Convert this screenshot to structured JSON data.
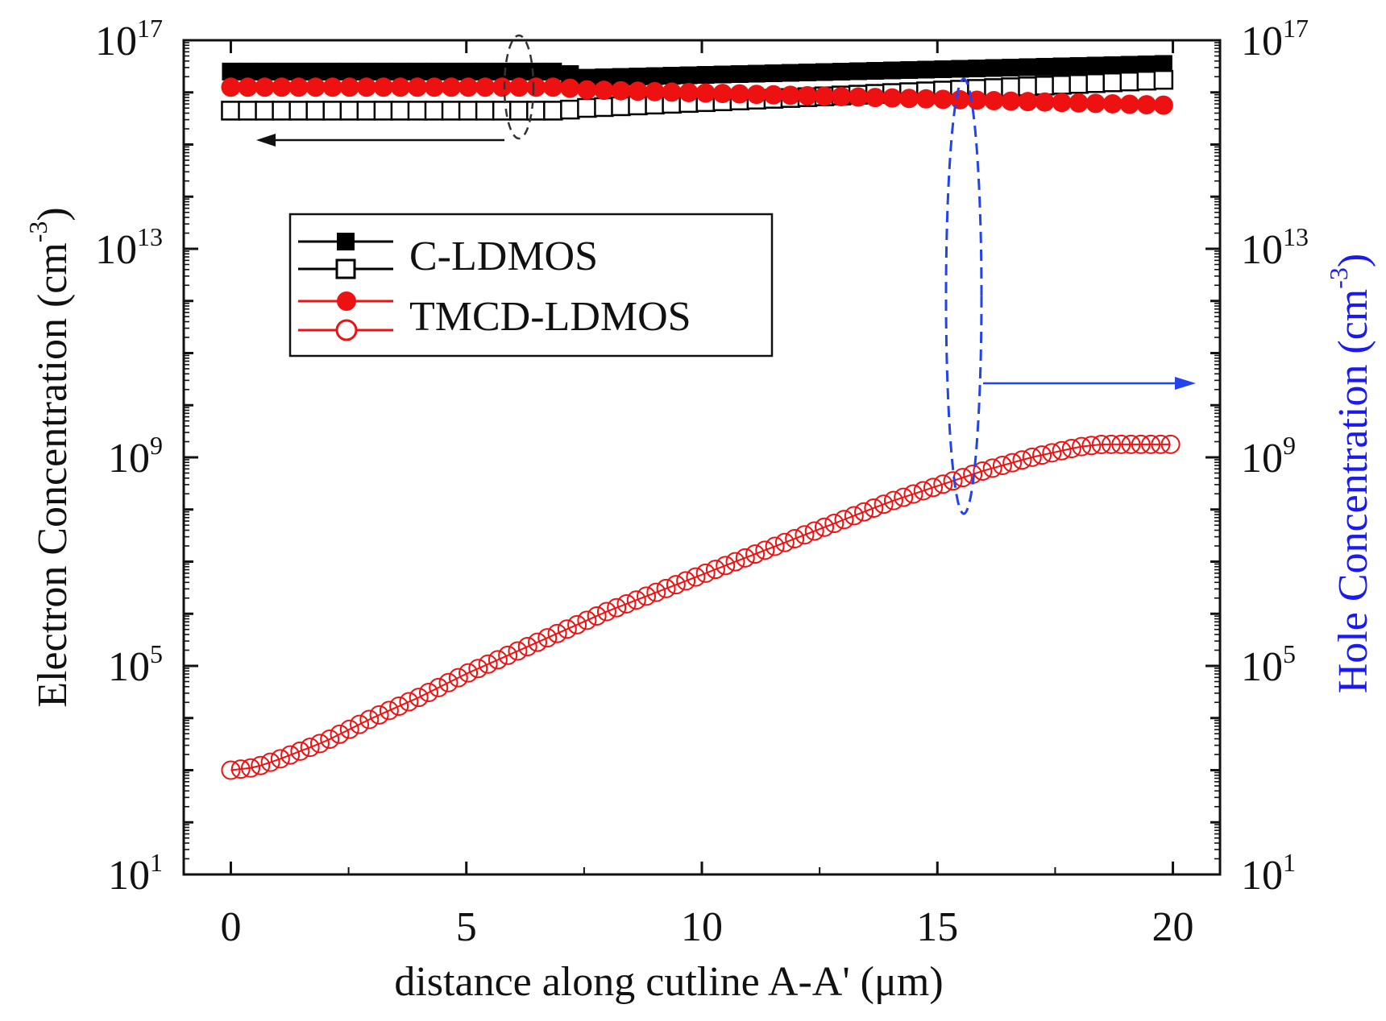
{
  "chart_data": {
    "type": "scatter",
    "title": "",
    "xlabel": "distance along cutline A-A' (μm)",
    "ylabel_left": "Electron Concentration (cm",
    "ylabel_left_exp": "-3",
    "ylabel_left_close": ")",
    "ylabel_right": "Hole Concentration (cm",
    "ylabel_right_exp": "-3",
    "ylabel_right_close": ")",
    "xlim": [
      -1,
      21
    ],
    "ylim_log10": [
      1,
      17
    ],
    "y_scale": "log",
    "x_ticks": [
      0,
      5,
      10,
      15,
      20
    ],
    "x_tick_labels": [
      "0",
      "5",
      "10",
      "15",
      "20"
    ],
    "y_ticks_exp": [
      1,
      5,
      9,
      13,
      17
    ],
    "y_tick_base": "10",
    "y_tick_exps": [
      "1",
      "5",
      "9",
      "13",
      "17"
    ],
    "legend_position": "upper-left",
    "series": [
      {
        "name": "C-LDMOS",
        "axis": "left",
        "quantity": "electron",
        "marker": "filled-square",
        "color": "#000000",
        "x": [
          0,
          7,
          7.5,
          20
        ],
        "log10_y": [
          16.4,
          16.4,
          16.28,
          16.55
        ]
      },
      {
        "name": "C-LDMOS",
        "axis": "right",
        "quantity": "hole",
        "marker": "open-square",
        "color": "#000000",
        "x": [
          0,
          7,
          7.5,
          20
        ],
        "log10_y": [
          15.65,
          15.65,
          15.7,
          16.25
        ]
      },
      {
        "name": "TMCD-LDMOS",
        "axis": "left",
        "quantity": "electron",
        "marker": "filled-circle",
        "color": "#ee1111",
        "x": [
          0,
          7,
          7.5,
          20
        ],
        "log10_y": [
          16.1,
          16.1,
          16.05,
          15.75
        ]
      },
      {
        "name": "TMCD-LDMOS",
        "axis": "right",
        "quantity": "hole",
        "marker": "open-circle",
        "color": "#ee1111",
        "x": [
          0,
          0.5,
          1,
          2,
          3,
          4,
          5,
          6,
          7,
          8,
          9,
          10,
          11,
          12,
          13,
          14,
          15,
          16,
          17,
          18,
          18.5,
          19,
          20
        ],
        "log10_y": [
          3.0,
          3.05,
          3.2,
          3.55,
          4.0,
          4.4,
          4.85,
          5.25,
          5.65,
          6.05,
          6.4,
          6.75,
          7.1,
          7.45,
          7.8,
          8.15,
          8.45,
          8.75,
          9.0,
          9.2,
          9.25,
          9.25,
          9.25
        ]
      }
    ],
    "annotations": {
      "left_arrow": "points to left axis (electron concentration)",
      "right_arrow": "points to right axis (hole concentration)"
    },
    "colors": {
      "axis": "#111111",
      "c_ldmos": "#000000",
      "tmcd_ldmos": "#ee1111",
      "hole_axis_label": "#1a1aee",
      "right_annotation": "#2244ee"
    }
  }
}
